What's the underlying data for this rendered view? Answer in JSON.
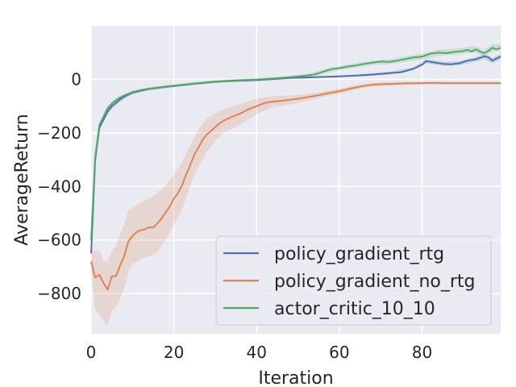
{
  "chart_data": {
    "type": "line",
    "xlabel": "Iteration",
    "ylabel": "AverageReturn",
    "xlim": [
      0,
      99
    ],
    "ylim": [
      -950,
      200
    ],
    "xticks": [
      0,
      20,
      40,
      60,
      80
    ],
    "yticks": [
      -800,
      -600,
      -400,
      -200,
      0
    ],
    "xtick_labels": [
      "0",
      "20",
      "40",
      "60",
      "80"
    ],
    "ytick_labels": [
      "−800",
      "−600",
      "−400",
      "−200",
      "0"
    ],
    "grid": true,
    "legend_position": "lower-right",
    "background": "#eaeaf2",
    "series": [
      {
        "name": "policy_gradient_rtg",
        "color": "#4c72b0",
        "band_color": "#4c72b0",
        "points": [
          [
            0,
            -650
          ],
          [
            1,
            -300
          ],
          [
            2,
            -180
          ],
          [
            3,
            -150
          ],
          [
            4,
            -120
          ],
          [
            5,
            -100
          ],
          [
            6,
            -88
          ],
          [
            7,
            -75
          ],
          [
            8,
            -65
          ],
          [
            9,
            -57
          ],
          [
            10,
            -50
          ],
          [
            12,
            -42
          ],
          [
            14,
            -36
          ],
          [
            16,
            -32
          ],
          [
            18,
            -28
          ],
          [
            20,
            -25
          ],
          [
            24,
            -18
          ],
          [
            28,
            -12
          ],
          [
            32,
            -7
          ],
          [
            36,
            -5
          ],
          [
            40,
            -3
          ],
          [
            44,
            1
          ],
          [
            48,
            5
          ],
          [
            52,
            7
          ],
          [
            56,
            9
          ],
          [
            60,
            11
          ],
          [
            64,
            14
          ],
          [
            68,
            18
          ],
          [
            72,
            23
          ],
          [
            75,
            27
          ],
          [
            78,
            40
          ],
          [
            80,
            55
          ],
          [
            81,
            68
          ],
          [
            83,
            63
          ],
          [
            85,
            58
          ],
          [
            87,
            56
          ],
          [
            89,
            60
          ],
          [
            91,
            70
          ],
          [
            93,
            75
          ],
          [
            95,
            86
          ],
          [
            96,
            83
          ],
          [
            97,
            70
          ],
          [
            98,
            78
          ],
          [
            99,
            85
          ]
        ],
        "band": [
          [
            0,
            -650,
            -650
          ],
          [
            1,
            -310,
            -290
          ],
          [
            2,
            -190,
            -170
          ],
          [
            4,
            -128,
            -112
          ],
          [
            6,
            -96,
            -80
          ],
          [
            8,
            -72,
            -58
          ],
          [
            10,
            -56,
            -44
          ],
          [
            14,
            -40,
            -32
          ],
          [
            18,
            -32,
            -24
          ],
          [
            24,
            -22,
            -14
          ],
          [
            30,
            -14,
            -4
          ],
          [
            36,
            -8,
            -2
          ],
          [
            40,
            -6,
            0
          ],
          [
            48,
            2,
            8
          ],
          [
            56,
            6,
            12
          ],
          [
            64,
            10,
            18
          ],
          [
            72,
            18,
            28
          ],
          [
            78,
            34,
            46
          ],
          [
            81,
            60,
            76
          ],
          [
            85,
            50,
            66
          ],
          [
            89,
            52,
            68
          ],
          [
            93,
            66,
            84
          ],
          [
            95,
            76,
            96
          ],
          [
            97,
            60,
            80
          ],
          [
            99,
            74,
            96
          ]
        ]
      },
      {
        "name": "policy_gradient_no_rtg",
        "color": "#dd8452",
        "band_color": "#dd8452",
        "points": [
          [
            0,
            -680
          ],
          [
            1,
            -740
          ],
          [
            2,
            -730
          ],
          [
            3,
            -760
          ],
          [
            4,
            -785
          ],
          [
            5,
            -735
          ],
          [
            6,
            -735
          ],
          [
            7,
            -695
          ],
          [
            8,
            -660
          ],
          [
            9,
            -605
          ],
          [
            10,
            -585
          ],
          [
            11,
            -570
          ],
          [
            12,
            -563
          ],
          [
            13,
            -560
          ],
          [
            14,
            -552
          ],
          [
            15,
            -553
          ],
          [
            16,
            -538
          ],
          [
            17,
            -520
          ],
          [
            18,
            -497
          ],
          [
            19,
            -475
          ],
          [
            20,
            -445
          ],
          [
            21,
            -425
          ],
          [
            22,
            -395
          ],
          [
            23,
            -355
          ],
          [
            24,
            -318
          ],
          [
            25,
            -280
          ],
          [
            26,
            -253
          ],
          [
            27,
            -225
          ],
          [
            28,
            -205
          ],
          [
            29,
            -193
          ],
          [
            30,
            -178
          ],
          [
            31,
            -165
          ],
          [
            32,
            -155
          ],
          [
            34,
            -140
          ],
          [
            36,
            -128
          ],
          [
            38,
            -112
          ],
          [
            40,
            -100
          ],
          [
            42,
            -88
          ],
          [
            44,
            -83
          ],
          [
            46,
            -80
          ],
          [
            48,
            -76
          ],
          [
            50,
            -72
          ],
          [
            52,
            -67
          ],
          [
            54,
            -62
          ],
          [
            56,
            -56
          ],
          [
            58,
            -50
          ],
          [
            60,
            -44
          ],
          [
            62,
            -37
          ],
          [
            64,
            -30
          ],
          [
            66,
            -24
          ],
          [
            68,
            -20
          ],
          [
            70,
            -18
          ],
          [
            72,
            -17
          ],
          [
            76,
            -15
          ],
          [
            80,
            -14
          ],
          [
            82,
            -13
          ],
          [
            86,
            -14
          ],
          [
            90,
            -14
          ],
          [
            94,
            -14
          ],
          [
            99,
            -14
          ]
        ],
        "band": [
          [
            0,
            -640,
            -720
          ],
          [
            1,
            -640,
            -860
          ],
          [
            2,
            -640,
            -880
          ],
          [
            3,
            -680,
            -900
          ],
          [
            4,
            -680,
            -920
          ],
          [
            5,
            -640,
            -860
          ],
          [
            6,
            -620,
            -850
          ],
          [
            7,
            -580,
            -820
          ],
          [
            8,
            -540,
            -780
          ],
          [
            9,
            -490,
            -720
          ],
          [
            10,
            -480,
            -690
          ],
          [
            12,
            -460,
            -670
          ],
          [
            14,
            -445,
            -660
          ],
          [
            16,
            -425,
            -645
          ],
          [
            18,
            -395,
            -600
          ],
          [
            20,
            -355,
            -545
          ],
          [
            22,
            -310,
            -485
          ],
          [
            24,
            -245,
            -395
          ],
          [
            26,
            -185,
            -325
          ],
          [
            28,
            -145,
            -270
          ],
          [
            30,
            -128,
            -230
          ],
          [
            32,
            -112,
            -200
          ],
          [
            36,
            -92,
            -168
          ],
          [
            40,
            -72,
            -130
          ],
          [
            44,
            -63,
            -103
          ],
          [
            48,
            -60,
            -94
          ],
          [
            52,
            -55,
            -80
          ],
          [
            56,
            -46,
            -66
          ],
          [
            60,
            -34,
            -54
          ],
          [
            64,
            -22,
            -38
          ],
          [
            68,
            -13,
            -27
          ],
          [
            72,
            -10,
            -24
          ],
          [
            80,
            -8,
            -20
          ],
          [
            90,
            -8,
            -20
          ],
          [
            99,
            -8,
            -20
          ]
        ]
      },
      {
        "name": "actor_critic_10_10",
        "color": "#55a868",
        "band_color": "#55a868",
        "points": [
          [
            0,
            -600
          ],
          [
            1,
            -290
          ],
          [
            2,
            -170
          ],
          [
            3,
            -140
          ],
          [
            4,
            -108
          ],
          [
            5,
            -90
          ],
          [
            6,
            -78
          ],
          [
            7,
            -68
          ],
          [
            8,
            -60
          ],
          [
            9,
            -54
          ],
          [
            10,
            -48
          ],
          [
            12,
            -40
          ],
          [
            14,
            -35
          ],
          [
            16,
            -31
          ],
          [
            18,
            -27
          ],
          [
            20,
            -24
          ],
          [
            24,
            -17
          ],
          [
            28,
            -11
          ],
          [
            32,
            -6
          ],
          [
            36,
            -3
          ],
          [
            40,
            -1
          ],
          [
            44,
            3
          ],
          [
            48,
            8
          ],
          [
            50,
            11
          ],
          [
            52,
            14
          ],
          [
            54,
            18
          ],
          [
            56,
            28
          ],
          [
            58,
            38
          ],
          [
            60,
            42
          ],
          [
            62,
            48
          ],
          [
            64,
            52
          ],
          [
            66,
            58
          ],
          [
            68,
            62
          ],
          [
            70,
            67
          ],
          [
            72,
            65
          ],
          [
            74,
            70
          ],
          [
            76,
            76
          ],
          [
            78,
            82
          ],
          [
            80,
            85
          ],
          [
            82,
            96
          ],
          [
            84,
            100
          ],
          [
            86,
            98
          ],
          [
            88,
            103
          ],
          [
            90,
            106
          ],
          [
            91,
            110
          ],
          [
            92,
            104
          ],
          [
            93,
            112
          ],
          [
            94,
            104
          ],
          [
            95,
            98
          ],
          [
            96,
            106
          ],
          [
            97,
            118
          ],
          [
            98,
            112
          ],
          [
            99,
            118
          ]
        ],
        "band": [
          [
            0,
            -600,
            -600
          ],
          [
            1,
            -300,
            -280
          ],
          [
            2,
            -180,
            -160
          ],
          [
            4,
            -116,
            -100
          ],
          [
            6,
            -85,
            -71
          ],
          [
            8,
            -66,
            -54
          ],
          [
            10,
            -54,
            -42
          ],
          [
            14,
            -40,
            -30
          ],
          [
            18,
            -32,
            -22
          ],
          [
            24,
            -22,
            -12
          ],
          [
            30,
            -12,
            -4
          ],
          [
            36,
            -6,
            0
          ],
          [
            42,
            -2,
            6
          ],
          [
            48,
            4,
            12
          ],
          [
            52,
            8,
            20
          ],
          [
            56,
            20,
            36
          ],
          [
            60,
            34,
            50
          ],
          [
            64,
            44,
            60
          ],
          [
            68,
            54,
            70
          ],
          [
            72,
            56,
            74
          ],
          [
            76,
            66,
            86
          ],
          [
            80,
            74,
            96
          ],
          [
            84,
            88,
            112
          ],
          [
            88,
            92,
            114
          ],
          [
            91,
            98,
            122
          ],
          [
            93,
            100,
            124
          ],
          [
            95,
            86,
            110
          ],
          [
            97,
            104,
            132
          ],
          [
            99,
            106,
            130
          ]
        ]
      }
    ]
  }
}
